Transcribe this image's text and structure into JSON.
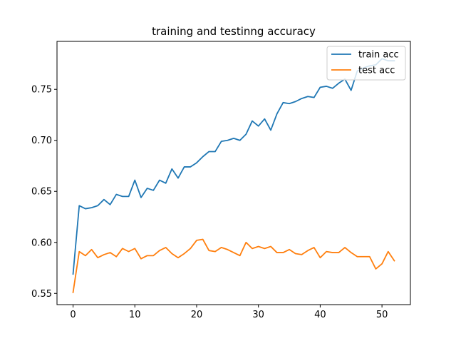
{
  "chart_data": {
    "type": "line",
    "title": "training and testinng accuracy",
    "xlabel": "",
    "ylabel": "",
    "xlim": [
      -2.6,
      54.6
    ],
    "ylim": [
      0.539,
      0.797
    ],
    "x_ticks": [
      0,
      10,
      20,
      30,
      40,
      50
    ],
    "y_ticks": [
      0.55,
      0.6,
      0.65,
      0.7,
      0.75
    ],
    "grid": false,
    "legend_position": "top-right",
    "x": [
      0,
      1,
      2,
      3,
      4,
      5,
      6,
      7,
      8,
      9,
      10,
      11,
      12,
      13,
      14,
      15,
      16,
      17,
      18,
      19,
      20,
      21,
      22,
      23,
      24,
      25,
      26,
      27,
      28,
      29,
      30,
      31,
      32,
      33,
      34,
      35,
      36,
      37,
      38,
      39,
      40,
      41,
      42,
      43,
      44,
      45,
      46,
      47,
      48,
      49,
      50,
      51,
      52
    ],
    "series": [
      {
        "name": "train acc",
        "color": "#1f77b4",
        "values": [
          0.569,
          0.636,
          0.633,
          0.634,
          0.636,
          0.642,
          0.637,
          0.647,
          0.645,
          0.645,
          0.661,
          0.644,
          0.653,
          0.651,
          0.661,
          0.658,
          0.672,
          0.663,
          0.674,
          0.674,
          0.678,
          0.684,
          0.689,
          0.689,
          0.699,
          0.7,
          0.702,
          0.7,
          0.706,
          0.719,
          0.714,
          0.721,
          0.71,
          0.726,
          0.737,
          0.736,
          0.738,
          0.741,
          0.743,
          0.742,
          0.752,
          0.753,
          0.751,
          0.756,
          0.76,
          0.749,
          0.768,
          0.771,
          0.773,
          0.774,
          0.78,
          0.778,
          0.778
        ]
      },
      {
        "name": "test acc",
        "color": "#ff7f0e",
        "values": [
          0.551,
          0.591,
          0.587,
          0.593,
          0.585,
          0.588,
          0.59,
          0.586,
          0.594,
          0.591,
          0.594,
          0.584,
          0.587,
          0.587,
          0.592,
          0.595,
          0.589,
          0.585,
          0.589,
          0.594,
          0.602,
          0.603,
          0.592,
          0.591,
          0.595,
          0.593,
          0.59,
          0.587,
          0.6,
          0.594,
          0.596,
          0.594,
          0.596,
          0.59,
          0.59,
          0.593,
          0.589,
          0.588,
          0.592,
          0.595,
          0.585,
          0.591,
          0.59,
          0.59,
          0.595,
          0.59,
          0.586,
          0.586,
          0.586,
          0.574,
          0.579,
          0.591,
          0.582
        ]
      }
    ]
  }
}
